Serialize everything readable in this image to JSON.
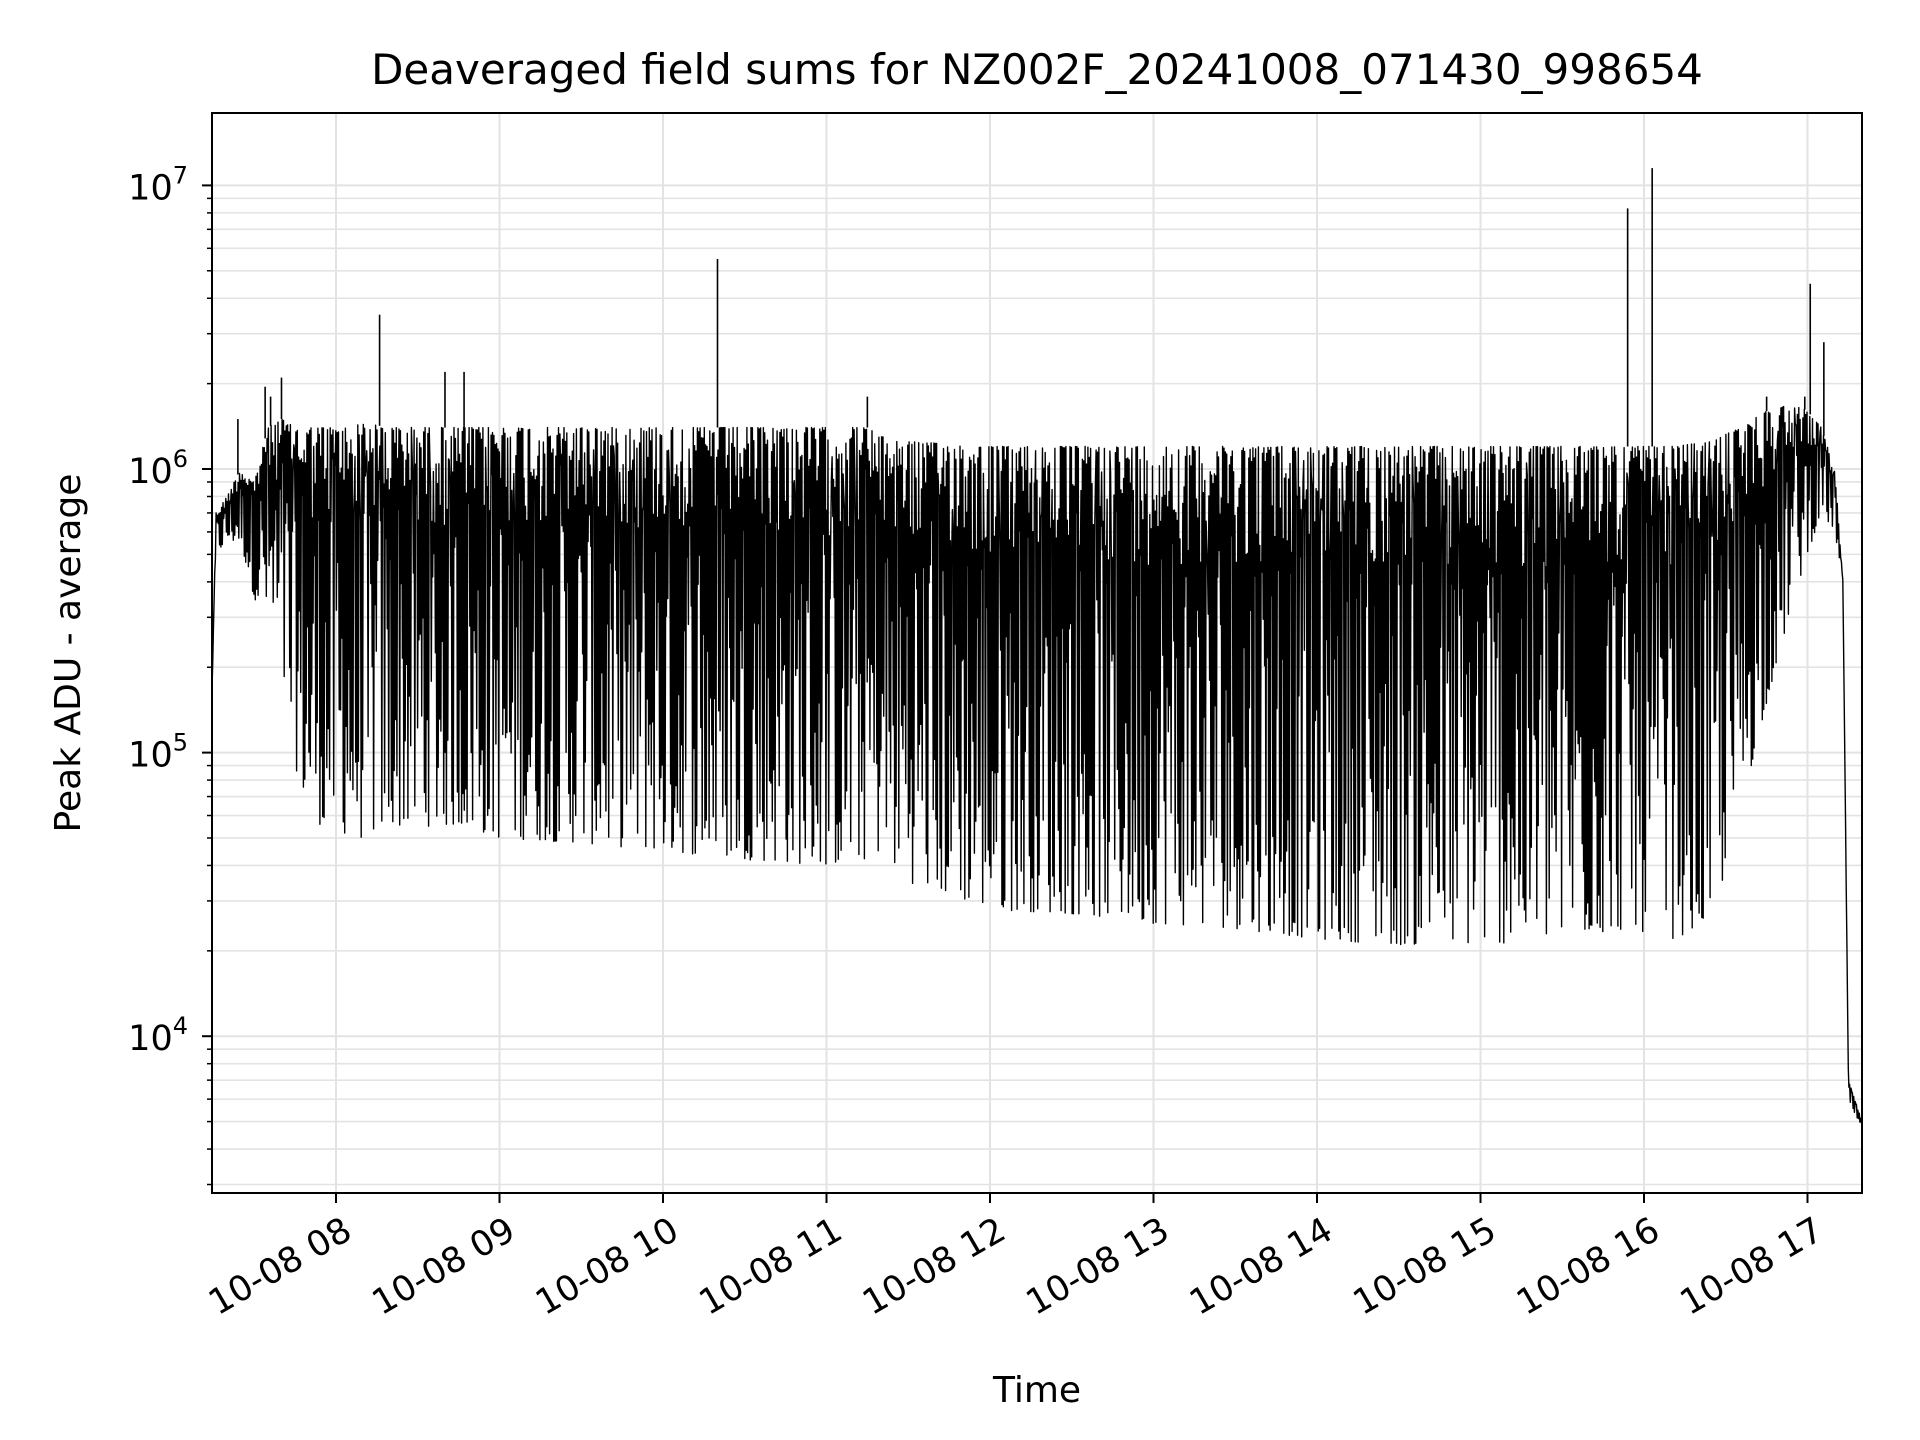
{
  "chart_data": {
    "type": "line",
    "title": "Deaveraged field sums for NZ002F_20241008_071430_998654",
    "xlabel": "Time",
    "ylabel": "Peak ADU - average",
    "yscale": "log",
    "grid": true,
    "line_color": "#000000",
    "xlim": [
      "10-08 07:14:30",
      "10-08 17:20"
    ],
    "ylim": [
      2800,
      18000000
    ],
    "x_ticks": [
      "10-08 08",
      "10-08 09",
      "10-08 10",
      "10-08 11",
      "10-08 12",
      "10-08 13",
      "10-08 14",
      "10-08 15",
      "10-08 16",
      "10-08 17"
    ],
    "y_ticks": [
      {
        "base": "10",
        "exp": "4",
        "value": 10000
      },
      {
        "base": "10",
        "exp": "5",
        "value": 100000
      },
      {
        "base": "10",
        "exp": "6",
        "value": 1000000
      },
      {
        "base": "10",
        "exp": "7",
        "value": 10000000
      }
    ],
    "series": [
      {
        "x": [
          "10-08 07:14:30",
          "10-08 07:16",
          "10-08 07:20",
          "10-08 07:25",
          "10-08 07:30",
          "10-08 07:35",
          "10-08 07:40",
          "10-08 07:45",
          "10-08 07:50",
          "10-08 07:55",
          "10-08 08:00",
          "10-08 08:05",
          "10-08 08:10",
          "10-08 08:20",
          "10-08 08:30",
          "10-08 08:45",
          "10-08 09:00",
          "10-08 09:30",
          "10-08 10:00",
          "10-08 10:30",
          "10-08 11:00",
          "10-08 11:15",
          "10-08 11:20",
          "10-08 11:30",
          "10-08 12:00",
          "10-08 12:30",
          "10-08 13:00",
          "10-08 13:30",
          "10-08 14:00",
          "10-08 14:30",
          "10-08 15:00",
          "10-08 15:30",
          "10-08 15:55",
          "10-08 16:10",
          "10-08 16:25",
          "10-08 16:35",
          "10-08 16:45",
          "10-08 16:55",
          "10-08 17:00",
          "10-08 17:05",
          "10-08 17:10",
          "10-08 17:13",
          "10-08 17:15",
          "10-08 17:20"
        ],
        "high": [
          170000,
          700000,
          800000,
          1000000,
          900000,
          1400000,
          1500000,
          1400000,
          1400000,
          1400000,
          1400000,
          1400000,
          1450000,
          1400000,
          1400000,
          1400000,
          1400000,
          1400000,
          1400000,
          1400000,
          1400000,
          1400000,
          1300000,
          1250000,
          1200000,
          1200000,
          1200000,
          1200000,
          1200000,
          1200000,
          1200000,
          1200000,
          1200000,
          1200000,
          1250000,
          1400000,
          1600000,
          1700000,
          1600000,
          1400000,
          1000000,
          400000,
          7000,
          5000
        ],
        "low": [
          170000,
          500000,
          550000,
          550000,
          350000,
          300000,
          180000,
          90000,
          60000,
          55000,
          55000,
          50000,
          50000,
          55000,
          55000,
          55000,
          50000,
          48000,
          45000,
          42000,
          40000,
          42000,
          45000,
          35000,
          28000,
          27000,
          25000,
          24000,
          22000,
          21000,
          21000,
          22000,
          24000,
          22000,
          25000,
          60000,
          150000,
          350000,
          500000,
          700000,
          600000,
          400000,
          6000,
          4500
        ]
      }
    ],
    "spikes": [
      {
        "x": "10-08 07:24",
        "y": 1500000
      },
      {
        "x": "10-08 07:34",
        "y": 1950000
      },
      {
        "x": "10-08 07:36",
        "y": 1800000
      },
      {
        "x": "10-08 07:40",
        "y": 2100000
      },
      {
        "x": "10-08 08:16",
        "y": 3500000
      },
      {
        "x": "10-08 08:40",
        "y": 2200000
      },
      {
        "x": "10-08 08:47",
        "y": 2200000
      },
      {
        "x": "10-08 10:20",
        "y": 5500000
      },
      {
        "x": "10-08 11:15",
        "y": 1800000
      },
      {
        "x": "10-08 15:54",
        "y": 8300000
      },
      {
        "x": "10-08 16:03",
        "y": 11500000
      },
      {
        "x": "10-08 16:45",
        "y": 1800000
      },
      {
        "x": "10-08 16:59",
        "y": 1800000
      },
      {
        "x": "10-08 17:01",
        "y": 4500000
      },
      {
        "x": "10-08 17:06",
        "y": 2800000
      }
    ]
  }
}
